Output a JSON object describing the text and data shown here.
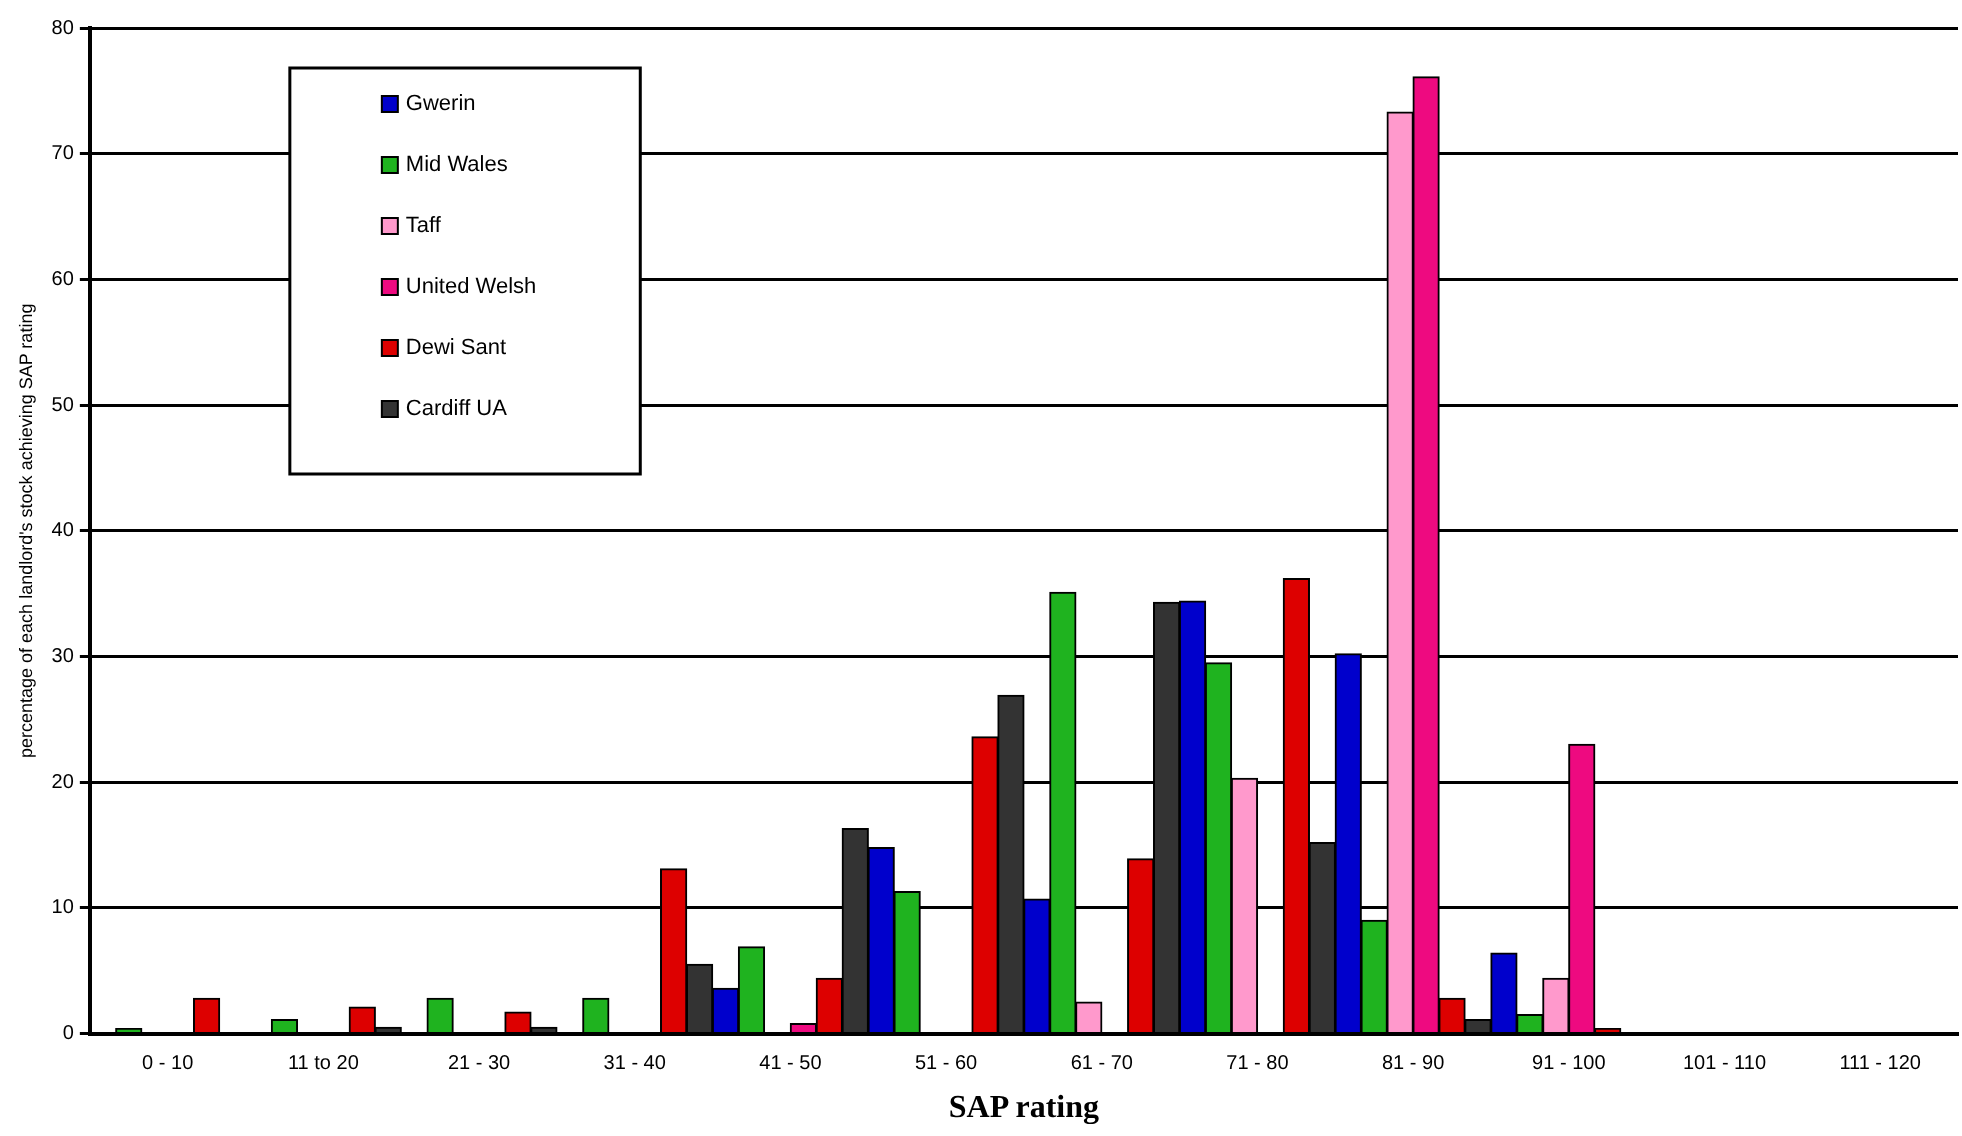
{
  "chart_data": {
    "type": "bar",
    "xlabel": "SAP rating",
    "ylabel": "percentage of each landlord's stock achieving SAP rating",
    "categories": [
      "0 - 10",
      "11 to 20",
      "21 - 30",
      "31 - 40",
      "41 - 50",
      "51 - 60",
      "61 - 70",
      "71 - 80",
      "81 - 90",
      "91 - 100",
      "101 - 110",
      "111 - 120"
    ],
    "series": [
      {
        "name": "Gwerin",
        "color": "#0000cc",
        "values": [
          0,
          0,
          0,
          0,
          3.6,
          14.8,
          10.7,
          34.4,
          30.2,
          6.4,
          0,
          0
        ]
      },
      {
        "name": "Mid Wales",
        "color": "#1fb31f",
        "values": [
          0.4,
          1.1,
          2.8,
          2.8,
          6.9,
          11.3,
          35.1,
          29.5,
          9,
          1.5,
          0,
          0
        ]
      },
      {
        "name": "Taff",
        "color": "#ff99cc",
        "values": [
          0,
          0,
          0,
          0,
          0,
          0,
          2.5,
          20.3,
          73.3,
          4.4,
          0,
          0
        ]
      },
      {
        "name": "United Welsh",
        "color": "#ee0a80",
        "values": [
          0,
          0,
          0,
          0,
          0.8,
          0,
          0,
          0,
          76.1,
          23,
          0,
          0
        ]
      },
      {
        "name": "Dewi Sant",
        "color": "#dd0000",
        "values": [
          2.8,
          2.1,
          1.7,
          13.1,
          4.4,
          23.6,
          13.9,
          36.2,
          2.8,
          0.4,
          0,
          0
        ]
      },
      {
        "name": "Cardiff UA",
        "color": "#333333",
        "values": [
          0,
          0.5,
          0.5,
          5.5,
          16.3,
          26.9,
          34.3,
          15.2,
          1.1,
          0,
          0,
          0
        ]
      }
    ],
    "ylim": [
      0,
      80
    ],
    "yticks": [
      0,
      10,
      20,
      30,
      40,
      50,
      60,
      70,
      80
    ],
    "grid": "y",
    "legend": "top left"
  }
}
